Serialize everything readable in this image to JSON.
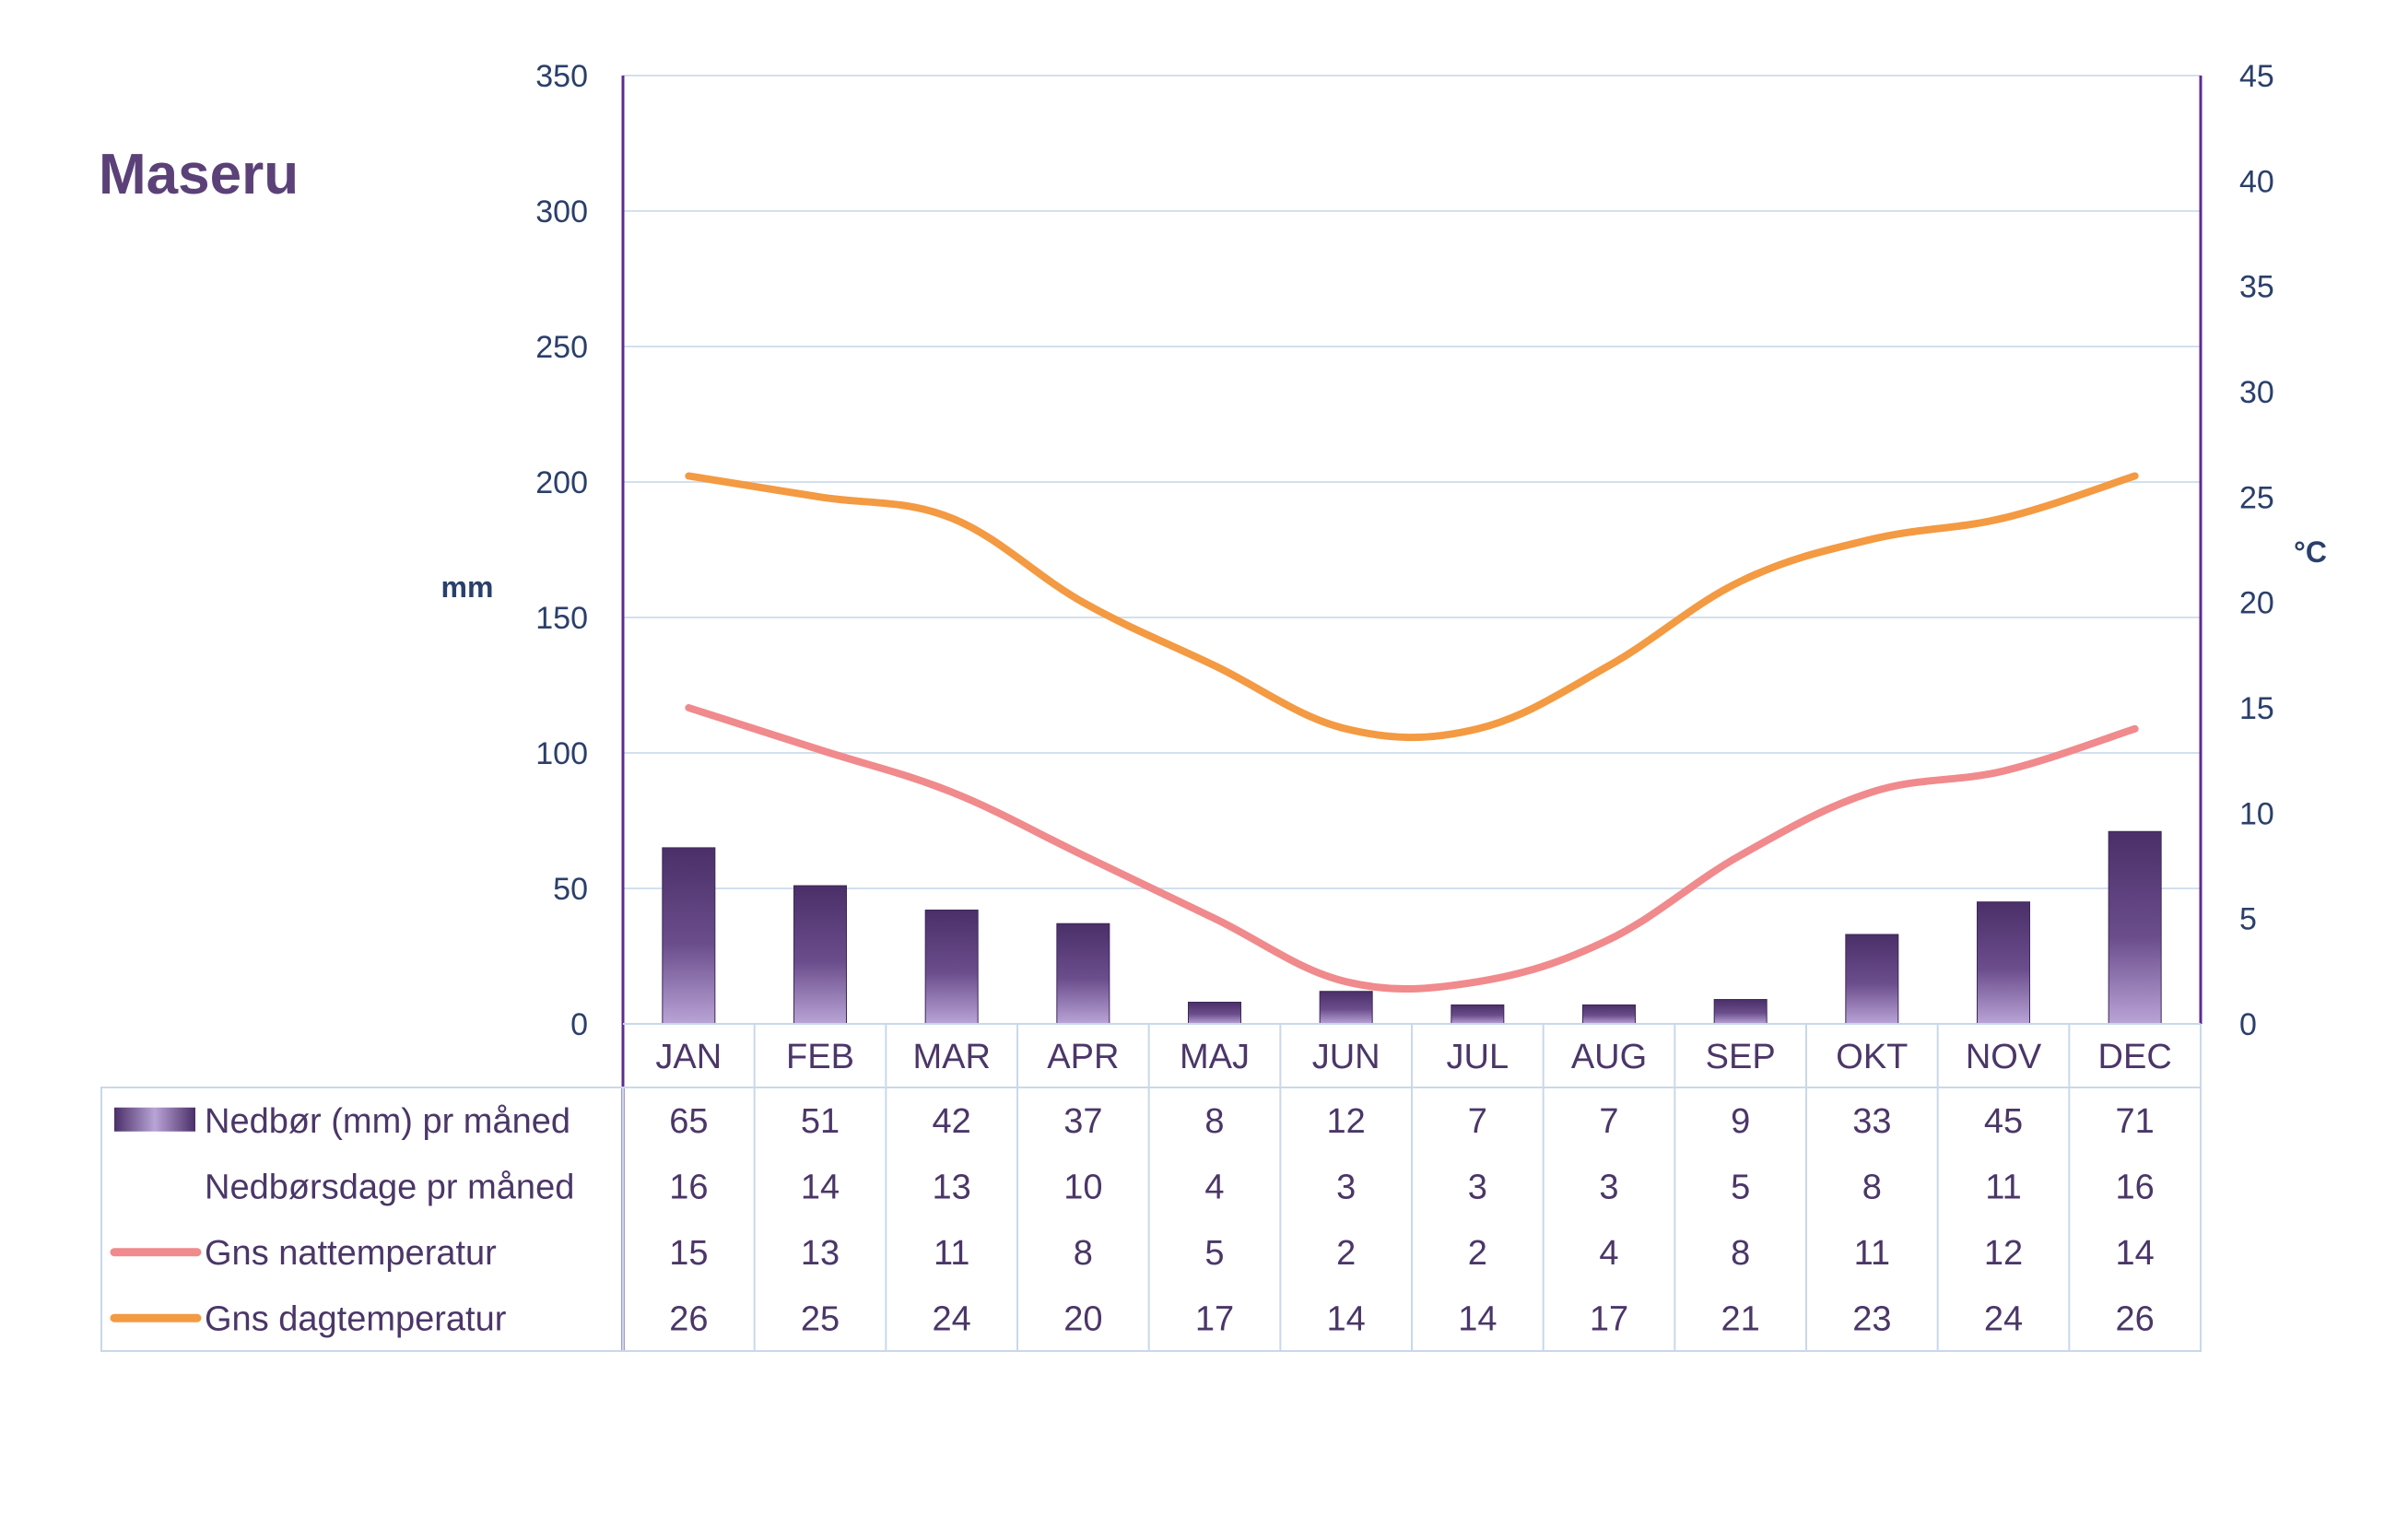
{
  "chart_data": {
    "type": "bar",
    "title": "Maseru",
    "categories": [
      "JAN",
      "FEB",
      "MAR",
      "APR",
      "MAJ",
      "JUN",
      "JUL",
      "AUG",
      "SEP",
      "OKT",
      "NOV",
      "DEC"
    ],
    "y_left": {
      "label": "mm",
      "ylim": [
        0,
        350
      ],
      "ticks": [
        0,
        50,
        100,
        150,
        200,
        250,
        300,
        350
      ]
    },
    "y_right": {
      "label": "°C",
      "ylim": [
        0,
        45
      ],
      "ticks": [
        0,
        5,
        10,
        15,
        20,
        25,
        30,
        35,
        40,
        45
      ]
    },
    "grid": true,
    "series": [
      {
        "name": "Nedbør (mm) pr måned",
        "type": "bar",
        "axis": "left",
        "color": "#5b4178",
        "values": [
          65,
          51,
          42,
          37,
          8,
          12,
          7,
          7,
          9,
          33,
          45,
          71
        ]
      },
      {
        "name": "Nedbørsdage pr måned",
        "type": "table-only",
        "values": [
          16,
          14,
          13,
          10,
          4,
          3,
          3,
          3,
          5,
          8,
          11,
          16
        ]
      },
      {
        "name": "Gns nattemperatur",
        "type": "line",
        "axis": "right",
        "color": "#f08a8c",
        "values": [
          15,
          13,
          11,
          8,
          5,
          2,
          2,
          4,
          8,
          11,
          12,
          14
        ]
      },
      {
        "name": "Gns dagtemperatur",
        "type": "line",
        "axis": "right",
        "color": "#f39a42",
        "values": [
          26,
          25,
          24,
          20,
          17,
          14,
          14,
          17,
          21,
          23,
          24,
          26
        ]
      }
    ]
  },
  "colors": {
    "title": "#5b4178",
    "axis_text": "#2a3f6b",
    "grid": "#d3e0ee",
    "axis_line": "#5b2c8f",
    "table_border": "#c9d8ea",
    "table_text": "#4b3668"
  }
}
